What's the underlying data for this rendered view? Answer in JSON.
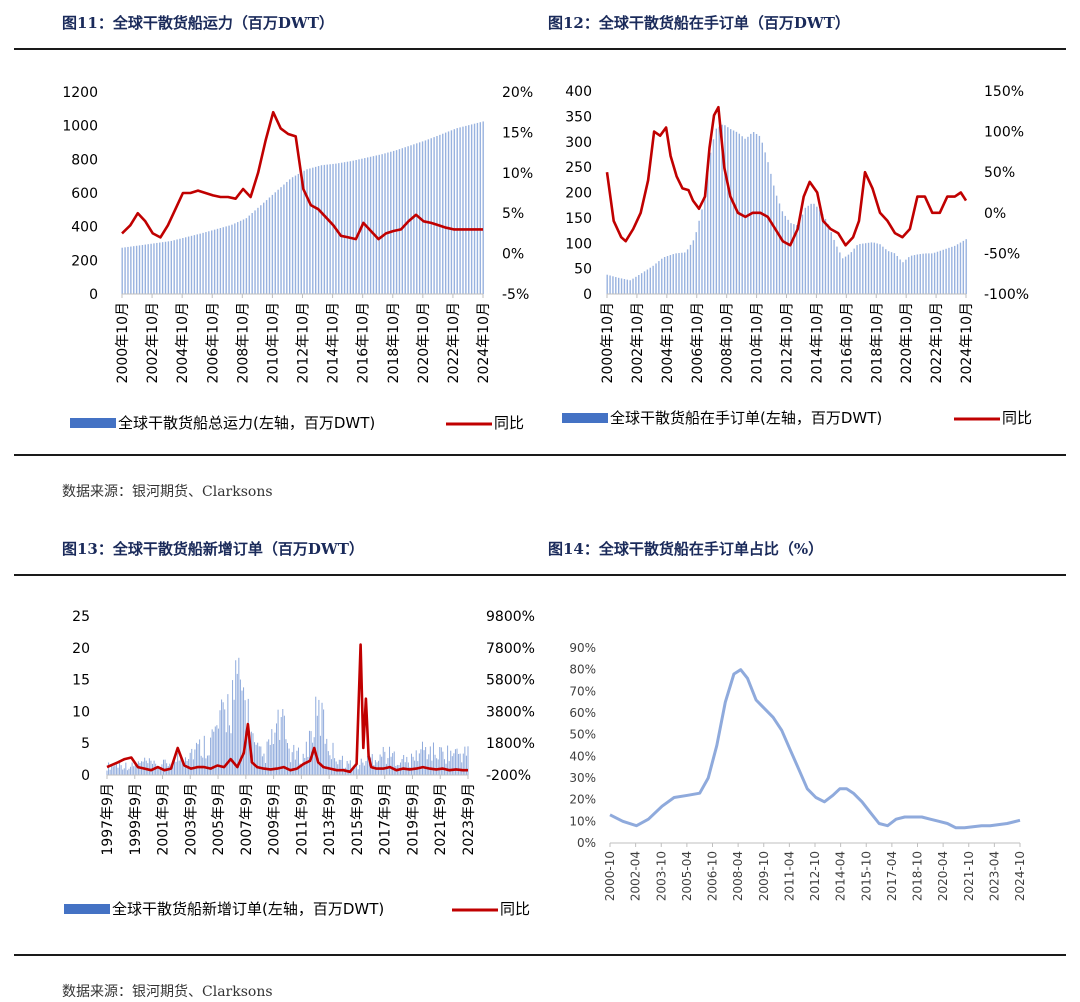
{
  "fig11_title": "图11：全球干散货船运力（百万DWT）",
  "fig12_title": "图12：全球干散货船在手订单（百万DWT）",
  "fig13_title": "图13：全球干散货船新增订单（百万DWT）",
  "fig14_title": "图14：全球干散货船在手订单占比（%）",
  "source_top": "数据来源：银河期货、Clarksons",
  "source_bottom": "数据来源：银河期货、Clarksons",
  "colors": {
    "bar": "#4472c4",
    "line": "#c00000",
    "line14": "#8faadc",
    "title": "#1a2a5a"
  },
  "chart_data": [
    {
      "id": "fig11",
      "type": "bar+line",
      "title": "图11：全球干散货船运力（百万DWT）",
      "x_ticks": [
        "2000年10月",
        "2002年10月",
        "2004年10月",
        "2006年10月",
        "2008年10月",
        "2010年10月",
        "2012年10月",
        "2014年10月",
        "2016年10月",
        "2018年10月",
        "2020年10月",
        "2022年10月",
        "2024年10月"
      ],
      "x_range": [
        2000.75,
        2024.75
      ],
      "y_left": {
        "range": [
          0,
          1200
        ],
        "ticks": [
          "0",
          "200",
          "400",
          "600",
          "800",
          "1000",
          "1200"
        ]
      },
      "y_right": {
        "range": [
          -5,
          20
        ],
        "ticks": [
          "-5%",
          "0%",
          "5%",
          "10%",
          "15%",
          "20%"
        ]
      },
      "legend": [
        "全球干散货船总运力(左轴，百万DWT)",
        "同比"
      ],
      "legend_position": "bottom",
      "series": [
        {
          "name": "全球干散货船总运力(左轴，百万DWT)",
          "type": "bar",
          "axis": "left",
          "x": [
            2000.75,
            2002,
            2004,
            2006,
            2008,
            2009,
            2010,
            2011,
            2012,
            2013,
            2014,
            2015,
            2016,
            2017,
            2018,
            2019,
            2020,
            2021,
            2022,
            2023,
            2024.75
          ],
          "y": [
            275,
            290,
            315,
            360,
            410,
            450,
            530,
            610,
            690,
            740,
            765,
            775,
            790,
            810,
            830,
            855,
            885,
            915,
            950,
            985,
            1025
          ]
        },
        {
          "name": "同比",
          "type": "line",
          "axis": "right",
          "x": [
            2000.75,
            2001.3,
            2001.8,
            2002.3,
            2002.8,
            2003.3,
            2003.8,
            2004.3,
            2004.8,
            2005.3,
            2005.8,
            2006.3,
            2006.8,
            2007.3,
            2007.8,
            2008.3,
            2008.8,
            2009.3,
            2009.8,
            2010.3,
            2010.8,
            2011.3,
            2011.8,
            2012.3,
            2012.8,
            2013.3,
            2013.8,
            2014.3,
            2014.8,
            2015.3,
            2015.8,
            2016.3,
            2016.8,
            2017.3,
            2017.8,
            2018.3,
            2018.8,
            2019.3,
            2019.8,
            2020.3,
            2020.8,
            2021.3,
            2021.8,
            2022.3,
            2022.8,
            2023.3,
            2023.8,
            2024.3,
            2024.75
          ],
          "y": [
            2.5,
            3.5,
            5.0,
            4.0,
            2.5,
            2.0,
            3.5,
            5.5,
            7.5,
            7.5,
            7.8,
            7.5,
            7.2,
            7.0,
            7.0,
            6.8,
            8.0,
            7.0,
            10.0,
            14.0,
            17.5,
            15.5,
            14.8,
            14.5,
            8.0,
            6.0,
            5.5,
            4.5,
            3.5,
            2.2,
            2.0,
            1.8,
            3.8,
            2.8,
            1.8,
            2.5,
            2.8,
            3.0,
            4.0,
            4.8,
            4.0,
            3.8,
            3.5,
            3.2,
            3.0,
            3.0,
            3.0,
            3.0,
            3.0
          ]
        }
      ]
    },
    {
      "id": "fig12",
      "type": "bar+line",
      "title": "图12：全球干散货船在手订单（百万DWT）",
      "x_ticks": [
        "2000年10月",
        "2002年10月",
        "2004年10月",
        "2006年10月",
        "2008年10月",
        "2010年10月",
        "2012年10月",
        "2014年10月",
        "2016年10月",
        "2018年10月",
        "2020年10月",
        "2022年10月",
        "2024年10月"
      ],
      "x_range": [
        2000.75,
        2024.75
      ],
      "y_left": {
        "range": [
          0,
          400
        ],
        "ticks": [
          "0",
          "50",
          "100",
          "150",
          "200",
          "250",
          "300",
          "350",
          "400"
        ]
      },
      "y_right": {
        "range": [
          -100,
          150
        ],
        "ticks": [
          "-100%",
          "-50%",
          "0%",
          "50%",
          "100%",
          "150%"
        ]
      },
      "legend": [
        "全球干散货船在手订单(左轴，百万DWT)",
        "同比"
      ],
      "legend_position": "bottom",
      "series": [
        {
          "name": "全球干散货船在手订单(左轴，百万DWT)",
          "type": "bar",
          "axis": "left",
          "x": [
            2000.75,
            2001.5,
            2002.3,
            2003,
            2003.8,
            2004.5,
            2005.3,
            2006,
            2006.6,
            2007.2,
            2007.6,
            2008,
            2008.5,
            2009,
            2009.5,
            2010,
            2010.5,
            2011,
            2011.5,
            2012,
            2012.5,
            2013,
            2013.5,
            2014,
            2014.5,
            2015,
            2015.5,
            2016,
            2016.5,
            2017,
            2017.5,
            2018,
            2018.5,
            2019,
            2019.5,
            2020,
            2020.5,
            2021,
            2021.5,
            2022,
            2022.5,
            2023,
            2023.5,
            2024,
            2024.75
          ],
          "y": [
            38,
            32,
            27,
            40,
            55,
            72,
            80,
            82,
            110,
            180,
            270,
            325,
            335,
            325,
            318,
            305,
            320,
            310,
            260,
            200,
            160,
            140,
            135,
            170,
            180,
            165,
            140,
            100,
            70,
            80,
            98,
            100,
            102,
            98,
            85,
            80,
            62,
            75,
            78,
            80,
            80,
            85,
            90,
            95,
            108
          ]
        },
        {
          "name": "同比",
          "type": "line",
          "axis": "right",
          "x": [
            2000.75,
            2001.2,
            2001.7,
            2002,
            2002.5,
            2003,
            2003.5,
            2003.9,
            2004.3,
            2004.7,
            2005,
            2005.4,
            2005.8,
            2006.2,
            2006.5,
            2006.9,
            2007.3,
            2007.6,
            2007.9,
            2008.2,
            2008.6,
            2009,
            2009.5,
            2010,
            2010.5,
            2011,
            2011.5,
            2012,
            2012.5,
            2013,
            2013.5,
            2013.9,
            2014.3,
            2014.8,
            2015.2,
            2015.7,
            2016.2,
            2016.7,
            2017.2,
            2017.6,
            2018,
            2018.5,
            2019,
            2019.5,
            2020,
            2020.5,
            2021,
            2021.5,
            2022,
            2022.5,
            2023,
            2023.5,
            2024,
            2024.4,
            2024.75
          ],
          "y": [
            50,
            -10,
            -30,
            -35,
            -20,
            0,
            40,
            100,
            95,
            105,
            70,
            45,
            30,
            28,
            15,
            5,
            20,
            80,
            120,
            130,
            55,
            20,
            0,
            -5,
            0,
            0,
            -5,
            -20,
            -35,
            -40,
            -20,
            20,
            38,
            25,
            -10,
            -20,
            -25,
            -40,
            -30,
            -10,
            50,
            30,
            0,
            -10,
            -25,
            -30,
            -20,
            20,
            20,
            0,
            0,
            20,
            20,
            25,
            15
          ]
        }
      ]
    },
    {
      "id": "fig13",
      "type": "bar+line",
      "title": "图13：全球干散货船新增订单（百万DWT）",
      "x_ticks": [
        "1997年9月",
        "1999年9月",
        "2001年9月",
        "2003年9月",
        "2005年9月",
        "2007年9月",
        "2009年9月",
        "2011年9月",
        "2013年9月",
        "2015年9月",
        "2017年9月",
        "2019年9月",
        "2021年9月",
        "2023年9月"
      ],
      "x_range": [
        1997.67,
        2024.9
      ],
      "y_left": {
        "range": [
          0,
          25
        ],
        "ticks": [
          "0",
          "5",
          "10",
          "15",
          "20",
          "25"
        ]
      },
      "y_right": {
        "range": [
          -200,
          9800
        ],
        "ticks": [
          "-200%",
          "1800%",
          "3800%",
          "5800%",
          "7800%",
          "9800%"
        ]
      },
      "legend": [
        "全球干散货船新增订单(左轴，百万DWT)",
        "同比"
      ],
      "legend_position": "bottom",
      "series": [
        {
          "name": "全球干散货船新增订单(左轴，百万DWT)",
          "type": "bar",
          "axis": "left",
          "x": [
            1997.67,
            1998.5,
            1999.5,
            2000.5,
            2001.5,
            2002.5,
            2003.5,
            2004.5,
            2005.5,
            2006.3,
            2006.8,
            2007.3,
            2007.8,
            2008.3,
            2008.8,
            2009.5,
            2010.3,
            2010.8,
            2011.5,
            2012.5,
            2013.3,
            2013.8,
            2014.5,
            2015.5,
            2016.5,
            2017.5,
            2018.5,
            2019.5,
            2020.5,
            2021.5,
            2022.5,
            2023.5,
            2024.5
          ],
          "y": [
            2,
            2.5,
            2,
            3,
            2,
            3,
            5,
            6,
            8,
            12,
            16,
            19,
            20,
            14,
            6,
            4,
            9,
            12,
            5,
            4,
            12,
            14,
            6,
            3,
            2,
            4,
            5,
            4,
            3,
            6,
            5,
            5,
            5
          ]
        },
        {
          "name": "同比",
          "type": "line",
          "axis": "right",
          "x": [
            1997.67,
            1998.5,
            1999,
            1999.5,
            2000,
            2000.5,
            2001,
            2001.5,
            2002,
            2002.5,
            2003,
            2003.5,
            2004,
            2004.5,
            2005,
            2005.5,
            2006,
            2006.5,
            2007,
            2007.5,
            2008,
            2008.3,
            2008.6,
            2009,
            2009.5,
            2010,
            2010.5,
            2011,
            2011.5,
            2012,
            2012.5,
            2013,
            2013.3,
            2013.6,
            2014,
            2014.5,
            2015,
            2015.5,
            2016,
            2016.5,
            2016.8,
            2017,
            2017.2,
            2017.4,
            2017.6,
            2018,
            2018.5,
            2019,
            2019.5,
            2020,
            2020.5,
            2021,
            2021.5,
            2022,
            2022.5,
            2023,
            2023.5,
            2024,
            2024.5,
            2024.9
          ],
          "y": [
            300,
            600,
            800,
            900,
            300,
            200,
            100,
            300,
            100,
            200,
            1500,
            400,
            200,
            300,
            300,
            200,
            400,
            300,
            800,
            300,
            1200,
            3000,
            600,
            300,
            200,
            150,
            200,
            300,
            100,
            200,
            500,
            700,
            1500,
            600,
            300,
            200,
            100,
            100,
            0,
            500,
            8000,
            1500,
            4600,
            1000,
            300,
            200,
            200,
            300,
            100,
            200,
            150,
            200,
            300,
            200,
            150,
            200,
            100,
            150,
            100,
            100
          ]
        }
      ]
    },
    {
      "id": "fig14",
      "type": "line",
      "title": "图14：全球干散货船在手订单占比（%）",
      "x_ticks": [
        "2000-10",
        "2002-04",
        "2003-10",
        "2005-04",
        "2006-10",
        "2008-04",
        "2009-10",
        "2011-04",
        "2012-10",
        "2014-04",
        "2015-10",
        "2017-04",
        "2018-10",
        "2020-04",
        "2021-10",
        "2023-04",
        "2024-10"
      ],
      "x_range": [
        2000.75,
        2024.75
      ],
      "y": {
        "range": [
          0,
          90
        ],
        "ticks": [
          "0%",
          "10%",
          "20%",
          "30%",
          "40%",
          "50%",
          "60%",
          "70%",
          "80%",
          "90%"
        ]
      },
      "series": [
        {
          "name": "在手订单占比",
          "type": "line",
          "x": [
            2000.75,
            2001.5,
            2002.3,
            2003,
            2003.8,
            2004.5,
            2005.3,
            2006,
            2006.5,
            2007,
            2007.5,
            2008,
            2008.4,
            2008.8,
            2009.3,
            2009.8,
            2010.3,
            2010.8,
            2011.3,
            2011.8,
            2012.3,
            2012.8,
            2013.3,
            2013.8,
            2014.2,
            2014.6,
            2015,
            2015.5,
            2016,
            2016.5,
            2017,
            2017.5,
            2018,
            2018.5,
            2019,
            2019.5,
            2020,
            2020.5,
            2021,
            2021.5,
            2022,
            2022.5,
            2023,
            2023.5,
            2024,
            2024.75
          ],
          "y": [
            13,
            10,
            8,
            11,
            17,
            21,
            22,
            23,
            30,
            45,
            65,
            78,
            80,
            76,
            66,
            62,
            58,
            52,
            43,
            34,
            25,
            21,
            19,
            22,
            25,
            25,
            23,
            19,
            14,
            9,
            8,
            11,
            12,
            12,
            12,
            11,
            10,
            9,
            7,
            7,
            7.5,
            8,
            8,
            8.5,
            9,
            10.5
          ]
        }
      ]
    }
  ]
}
